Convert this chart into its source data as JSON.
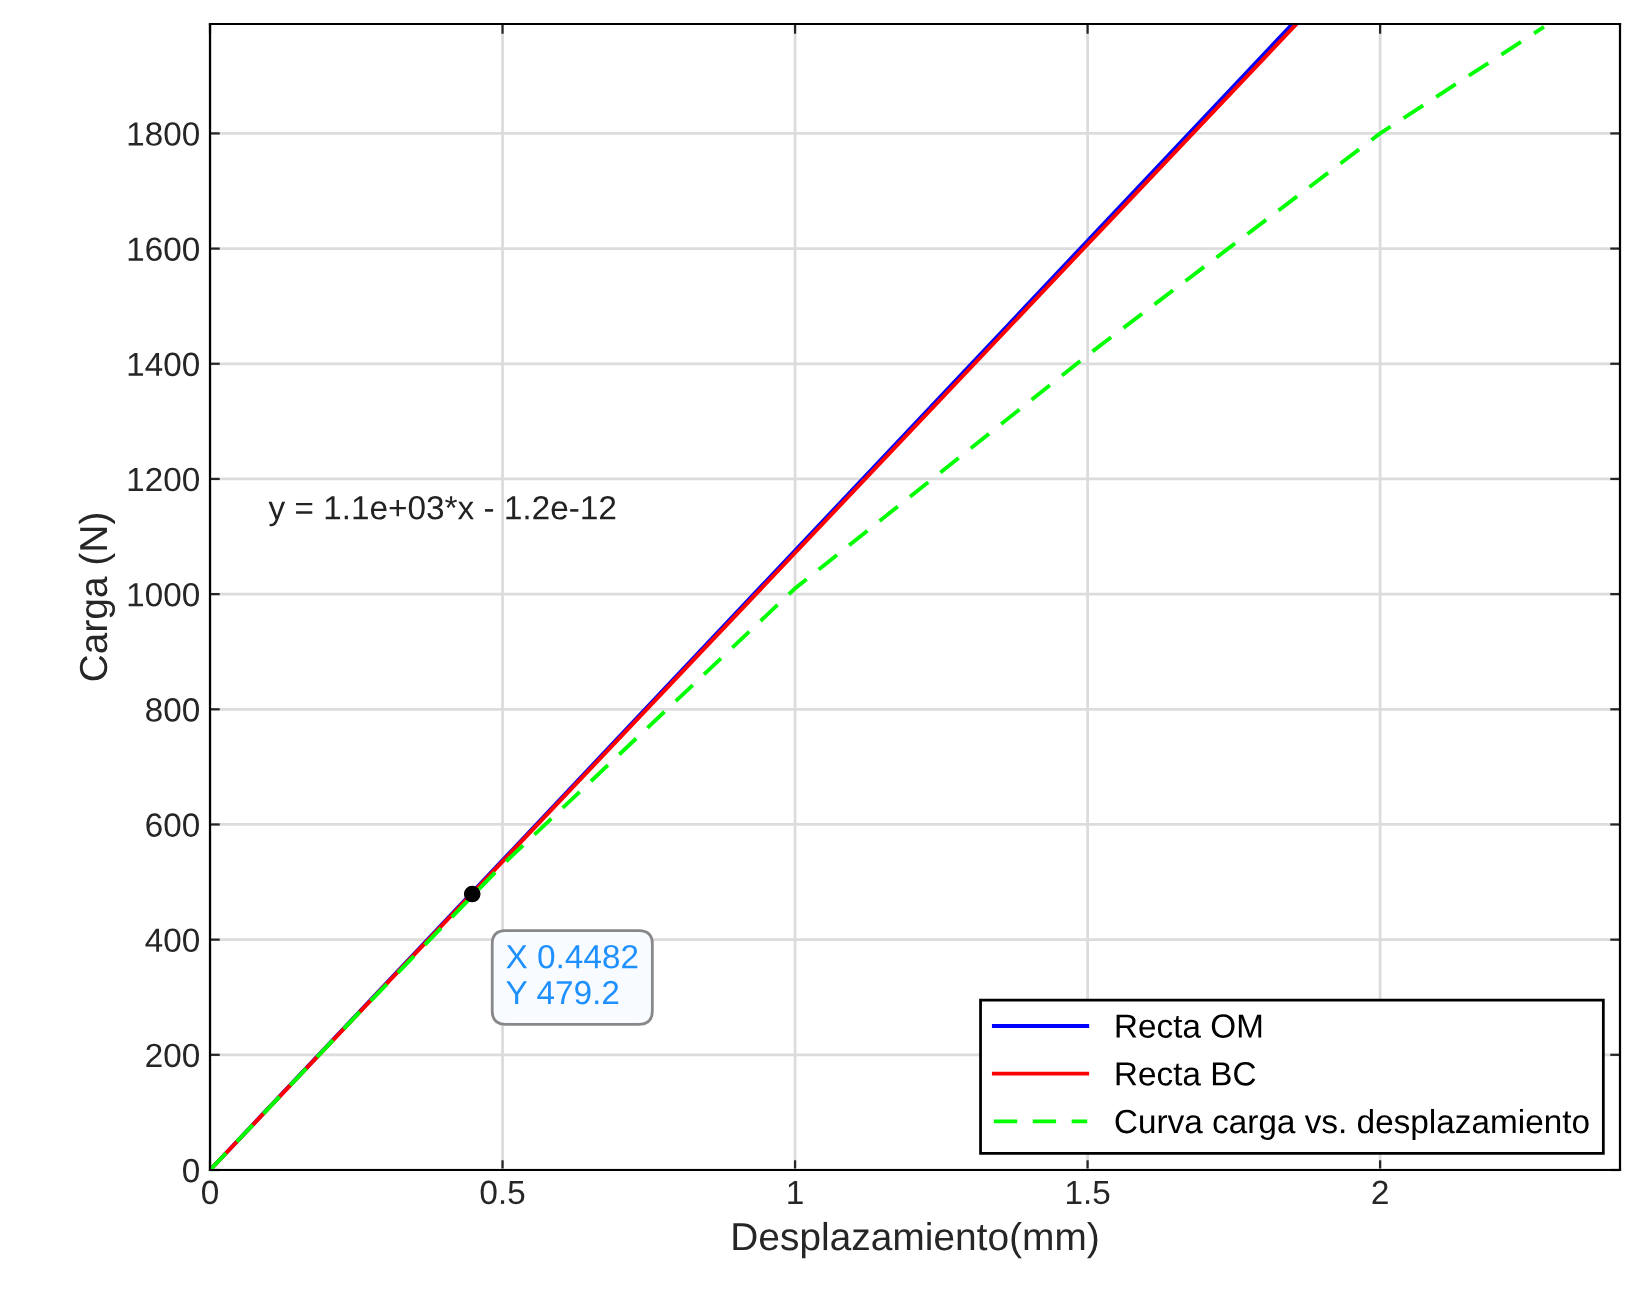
{
  "chart_data": {
    "type": "line",
    "xlabel": "Desplazamiento(mm)",
    "ylabel": "Carga (N)",
    "xlim": [
      0,
      2.41
    ],
    "ylim": [
      0,
      1990
    ],
    "xticks": [
      0,
      0.5,
      1,
      1.5,
      2
    ],
    "yticks": [
      0,
      200,
      400,
      600,
      800,
      1000,
      1200,
      1400,
      1600,
      1800
    ],
    "grid": true,
    "legend": "bottom right",
    "series": [
      {
        "name": "Recta OM",
        "color": "#0000ff",
        "x": [
          0,
          1.85
        ],
        "values": [
          0,
          1990
        ],
        "line_style": "solid"
      },
      {
        "name": "Recta BC",
        "color": "#ff0000",
        "x": [
          0,
          1.857
        ],
        "values": [
          0,
          1990
        ],
        "line_style": "solid"
      },
      {
        "name": "Curva carga vs. desplazamiento",
        "color": "#00ff00",
        "x": [
          0,
          0.25,
          0.5,
          1,
          1.5,
          2,
          2.28
        ],
        "values": [
          0,
          268,
          530,
          1010,
          1415,
          1800,
          1985
        ],
        "line_style": "dashed"
      }
    ],
    "annotations": [
      "y = 1.1e+03*x - 1.2e-12",
      {
        "text": "X 0.4482\nY 479.2",
        "x": 0.4482,
        "y": 479.2
      }
    ]
  }
}
